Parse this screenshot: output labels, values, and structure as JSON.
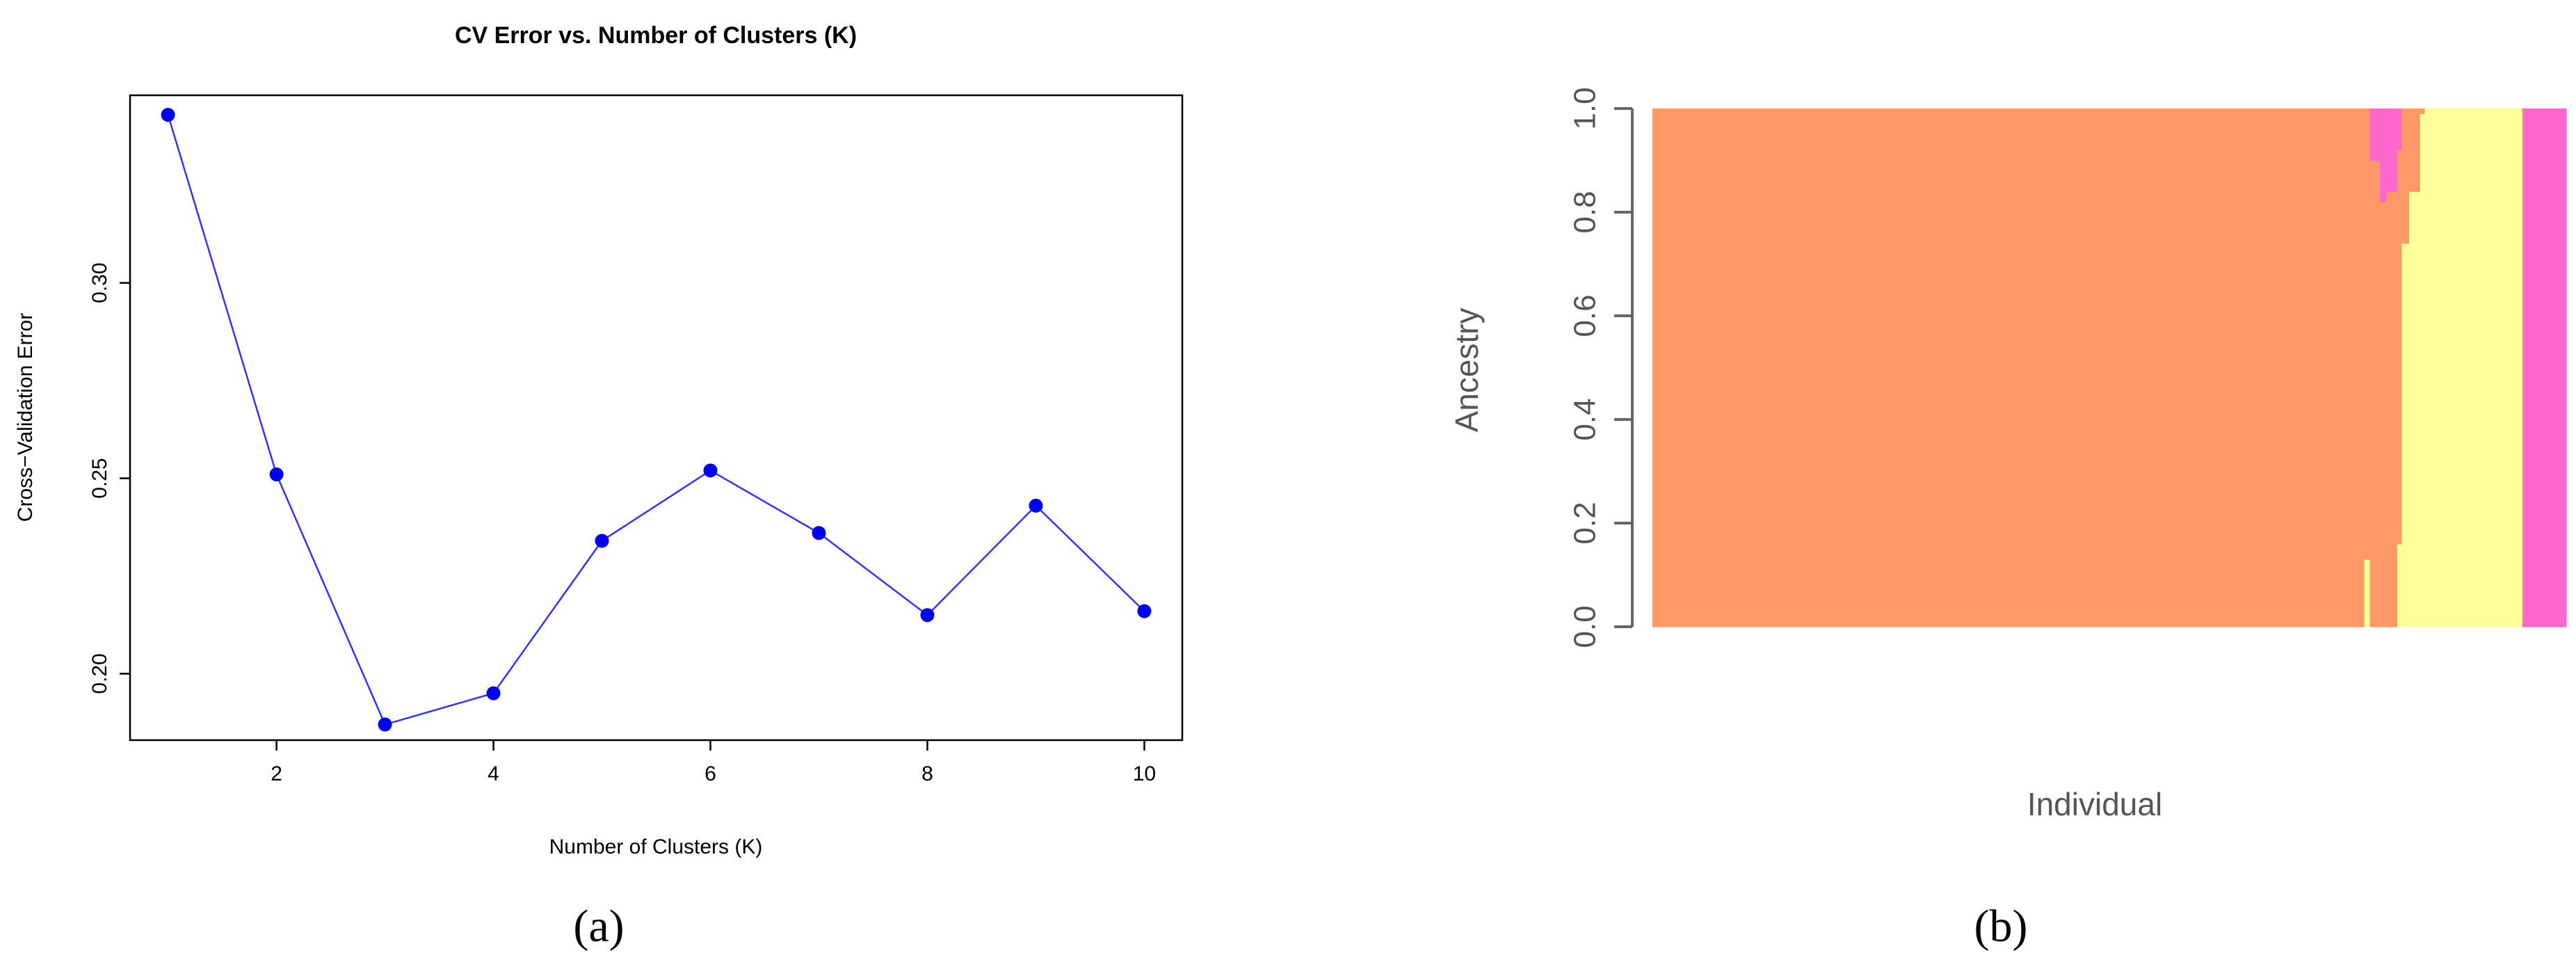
{
  "chart_data": [
    {
      "type": "line",
      "title": "CV Error vs. Number of Clusters (K)",
      "xlabel": "Number of Clusters (K)",
      "ylabel": "Cross−Validation Error",
      "x": [
        1,
        2,
        3,
        4,
        5,
        6,
        7,
        8,
        9,
        10
      ],
      "y": [
        0.343,
        0.251,
        0.187,
        0.195,
        0.234,
        0.252,
        0.236,
        0.215,
        0.243,
        0.216
      ],
      "xlim": [
        0.65,
        10.35
      ],
      "ylim": [
        0.183,
        0.348
      ],
      "xticks": [
        2,
        4,
        6,
        8,
        10
      ],
      "xtick_labels": [
        "2",
        "4",
        "6",
        "8",
        "10"
      ],
      "yticks": [
        0.2,
        0.25,
        0.3
      ],
      "ytick_labels": [
        "0.20",
        "0.25",
        "0.30"
      ],
      "line_color": "#3333ff",
      "marker_color": "#0000ee",
      "grid": false,
      "panel_label": "(a)"
    },
    {
      "type": "area",
      "xlabel": "Individual",
      "ylabel": "Ancestry",
      "ylim": [
        0,
        1
      ],
      "yticks": [
        0,
        0.2,
        0.4,
        0.6,
        0.8,
        1.0
      ],
      "ytick_labels": [
        "0.0",
        "0.2",
        "0.4",
        "0.6",
        "0.8",
        "1.0"
      ],
      "colors": {
        "orange": "#fd9966",
        "pink": "#fd66cc",
        "yellow": "#ffff99"
      },
      "columns_xlim": [
        0,
        100
      ],
      "columns": [
        {
          "x0": 0,
          "x1": 77.9,
          "segments": [
            {
              "color": "orange",
              "from": 0,
              "to": 1
            }
          ]
        },
        {
          "x0": 77.9,
          "x1": 78.5,
          "segments": [
            {
              "color": "yellow",
              "from": 0,
              "to": 0.13
            },
            {
              "color": "orange",
              "from": 0.13,
              "to": 1
            }
          ]
        },
        {
          "x0": 78.5,
          "x1": 79.6,
          "segments": [
            {
              "color": "orange",
              "from": 0,
              "to": 0.9
            },
            {
              "color": "pink",
              "from": 0.9,
              "to": 1
            }
          ]
        },
        {
          "x0": 79.6,
          "x1": 80.3,
          "segments": [
            {
              "color": "orange",
              "from": 0,
              "to": 0.82
            },
            {
              "color": "pink",
              "from": 0.82,
              "to": 1
            }
          ]
        },
        {
          "x0": 80.3,
          "x1": 81.5,
          "segments": [
            {
              "color": "orange",
              "from": 0,
              "to": 0.84
            },
            {
              "color": "pink",
              "from": 0.84,
              "to": 1
            }
          ]
        },
        {
          "x0": 81.5,
          "x1": 82.0,
          "segments": [
            {
              "color": "yellow",
              "from": 0,
              "to": 0.16
            },
            {
              "color": "orange",
              "from": 0.16,
              "to": 0.92
            },
            {
              "color": "pink",
              "from": 0.92,
              "to": 1
            }
          ]
        },
        {
          "x0": 82.0,
          "x1": 82.8,
          "segments": [
            {
              "color": "yellow",
              "from": 0,
              "to": 0.74
            },
            {
              "color": "orange",
              "from": 0.74,
              "to": 1
            }
          ]
        },
        {
          "x0": 82.8,
          "x1": 84.0,
          "segments": [
            {
              "color": "yellow",
              "from": 0,
              "to": 0.84
            },
            {
              "color": "orange",
              "from": 0.84,
              "to": 1
            }
          ]
        },
        {
          "x0": 84.0,
          "x1": 84.5,
          "segments": [
            {
              "color": "yellow",
              "from": 0,
              "to": 0.99
            },
            {
              "color": "orange",
              "from": 0.99,
              "to": 1
            }
          ]
        },
        {
          "x0": 84.5,
          "x1": 95.2,
          "segments": [
            {
              "color": "yellow",
              "from": 0,
              "to": 1
            }
          ]
        },
        {
          "x0": 95.2,
          "x1": 100,
          "segments": [
            {
              "color": "pink",
              "from": 0,
              "to": 1
            }
          ]
        }
      ],
      "panel_label": "(b)"
    }
  ]
}
